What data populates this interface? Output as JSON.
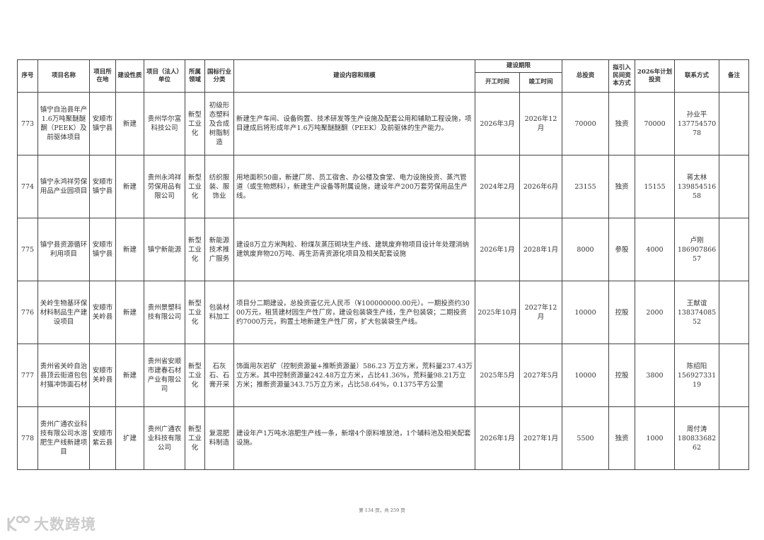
{
  "table": {
    "headers": {
      "seq": "序号",
      "name": "项目名称",
      "location": "项目所在地",
      "nature": "建设性质",
      "unit": "项目（法人）单位",
      "field": "所属领域",
      "industry": "国标行业分类",
      "content": "建设内容和规模",
      "period": "建设期限",
      "start": "开工时间",
      "end": "竣工时间",
      "total": "总投资",
      "capital_mode": "拟引入民间资本方式",
      "plan2026": "2026年计划投资",
      "contact": "联系方式",
      "remark": "备注"
    },
    "rows": [
      {
        "seq": "773",
        "name": "镇宁自治县年产1.6万吨聚醚醚酮（PEEK）及前驱体项目",
        "location": "安顺市镇宁县",
        "nature": "新建",
        "unit": "贵州华尔富科技公司",
        "field": "新型工业化",
        "industry": "初级形态塑料及合成树脂制造",
        "content": "新建生产车间、设备购置、技术研发等生产设施及配套公用和辅助工程设施，项目建成后将形成年产1.6万吨聚醚醚酮（PEEK）及前驱体的生产能力。",
        "start": "2026年3月",
        "end": "2026年12月",
        "total": "70000",
        "capital_mode": "独资",
        "plan2026": "70000",
        "contact_name": "孙业平",
        "contact_phone": "13775457078",
        "remark": ""
      },
      {
        "seq": "774",
        "name": "镇宁永鸿祥劳保用品产业园项目",
        "location": "安顺市镇宁县",
        "nature": "新建",
        "unit": "贵州永鸿祥劳保用品有限公司",
        "field": "新型工业化",
        "industry": "纺织服装、服饰业",
        "content": "用地面积50亩，新建厂房、员工宿舍、办公楼及食堂、电力设施投资、蒸汽管道（或生物燃料），新建生产设备等附属设施，建设年产200万套劳保用品生产线。",
        "start": "2024年2月",
        "end": "2026年6月",
        "total": "23155",
        "capital_mode": "独资",
        "plan2026": "15155",
        "contact_name": "蒋太林",
        "contact_phone": "13985451658",
        "remark": ""
      },
      {
        "seq": "775",
        "name": "镇宁县资源循环利用项目",
        "location": "安顺市镇宁县",
        "nature": "新建",
        "unit": "镇宁新能源",
        "field": "新型工业化",
        "industry": "新能源技术推广服务",
        "content": "建设8万立方米陶粒、粉煤灰蒸压砌块生产线、建筑废弃物项目设计年处理消纳建筑废弃物20万吨、再生沥青资源化项目及相关配套设施",
        "start": "2026年1月",
        "end": "2028年1月",
        "total": "8000",
        "capital_mode": "参股",
        "plan2026": "4000",
        "contact_name": "卢刚",
        "contact_phone": "18690786657",
        "remark": ""
      },
      {
        "seq": "776",
        "name": "关岭生物基环保材料制品生产建设项目",
        "location": "安顺市关岭县",
        "nature": "新建",
        "unit": "贵州景塑科技有限公司",
        "field": "新型工业化",
        "industry": "包装材料加工",
        "content": "项目分二期建设，总投资壹亿元人民币（¥100000000.00元）。一期投资约3000万元，租赁建材园生产性厂房，建设包装袋生产线，生产包装袋；二期投资约7000万元，购置土地新建生产性厂房，扩大包装袋生产线。",
        "start": "2025年10月",
        "end": "2027年12月",
        "total": "10000",
        "capital_mode": "控股",
        "plan2026": "2000",
        "contact_name": "王献谊",
        "contact_phone": "13837408552",
        "remark": ""
      },
      {
        "seq": "777",
        "name": "贵州省关岭自治县顶云街道包包村猫冲饰面石材",
        "location": "安顺市关岭县",
        "nature": "新建",
        "unit": "贵州省安顺市建春石材产业有限公司",
        "field": "新型工业化",
        "industry": "石灰石、石膏开采",
        "content": "饰面用灰岩矿（控制资源量+推断资源量）586.23 万立方米，荒料量237.43万立方米。其中控制资源量242.48万立方米，占比41.36%，荒料量98.21万立方米；推断资源量343.75万立方米，占比58.64%，0.1375平方公里",
        "start": "2025年5月",
        "end": "2027年5月",
        "total": "10000",
        "capital_mode": "控股",
        "plan2026": "3800",
        "contact_name": "陈绍阳",
        "contact_phone": "15692733119",
        "remark": ""
      },
      {
        "seq": "778",
        "name": "贵州广通农业科技有限公司水溶肥生产线新建项目",
        "location": "安顺市紫云县",
        "nature": "扩建",
        "unit": "贵州广通农业科技有限公司",
        "field": "新型工业化",
        "industry": "复混肥料制造",
        "content": "建设年产1万吨水溶肥生产线一条，新增4个原料堆放池，1个辅料池及相关配套设施。",
        "start": "2026年1月",
        "end": "2027年1月",
        "total": "5500",
        "capital_mode": "独资",
        "plan2026": "1000",
        "contact_name": "周付涛",
        "contact_phone": "18083368262",
        "remark": ""
      }
    ]
  },
  "footer": {
    "page_info": "第 134 页，共 259 页"
  },
  "watermark": {
    "text": "大数跨境",
    "icon": "watermark-logo-icon"
  }
}
